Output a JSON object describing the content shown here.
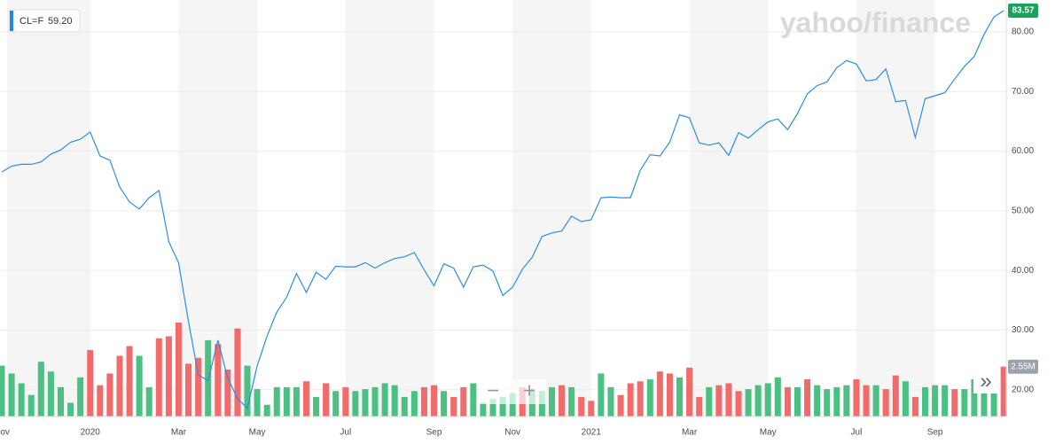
{
  "chart_data": {
    "type": "line",
    "symbol": "CL=F",
    "legend_value": "59.20",
    "logo": "yahoo/finance",
    "last_price": 83.57,
    "controls": [
      "−",
      "+",
      "»"
    ],
    "categories": [
      "Nov",
      null,
      null,
      null,
      null,
      null,
      null,
      null,
      null,
      "2020",
      null,
      null,
      null,
      null,
      null,
      null,
      null,
      null,
      "Mar",
      null,
      null,
      null,
      null,
      null,
      null,
      null,
      "May",
      null,
      null,
      null,
      null,
      null,
      null,
      null,
      null,
      "Jul",
      null,
      null,
      null,
      null,
      null,
      null,
      null,
      null,
      "Sep",
      null,
      null,
      null,
      null,
      null,
      null,
      null,
      "Nov",
      null,
      null,
      null,
      null,
      null,
      null,
      null,
      "2021",
      null,
      null,
      null,
      null,
      null,
      null,
      null,
      null,
      null,
      "Mar",
      null,
      null,
      null,
      null,
      null,
      null,
      null,
      "May",
      null,
      null,
      null,
      null,
      null,
      null,
      null,
      null,
      "Jul",
      null,
      null,
      null,
      null,
      null,
      null,
      null,
      "Sep",
      null,
      null,
      null,
      null,
      null,
      null,
      null
    ],
    "series": [
      {
        "color": "#2b8ee0",
        "values": [
          56.5,
          57.5,
          57.8,
          57.8,
          58.2,
          59.5,
          60.2,
          61.5,
          62.0,
          63.2,
          59.2,
          58.5,
          54.0,
          51.5,
          50.3,
          52.2,
          53.4,
          44.8,
          41.3,
          31.5,
          22.5,
          21.5,
          28.3,
          22.0,
          18.5,
          16.9,
          24.0,
          29.0,
          33.0,
          35.5,
          39.5,
          36.3,
          39.7,
          38.5,
          40.7,
          40.6,
          40.6,
          41.3,
          40.4,
          41.3,
          42.0,
          42.3,
          43.0,
          40.1,
          37.4,
          41.1,
          40.4,
          37.2,
          40.6,
          40.9,
          39.9,
          35.8,
          37.2,
          40.2,
          42.2,
          45.7,
          46.3,
          46.6,
          49.1,
          48.2,
          48.5,
          52.2,
          52.3,
          52.2,
          52.2,
          56.8,
          59.4,
          59.2,
          61.5,
          66.1,
          65.6,
          61.4,
          61.0,
          61.4,
          59.3,
          63.1,
          62.2,
          63.6,
          64.9,
          65.4,
          63.6,
          66.3,
          69.6,
          71.0,
          71.6,
          74.0,
          75.2,
          74.6,
          71.8,
          72.0,
          73.8,
          68.3,
          68.5,
          62.3,
          68.8,
          69.3,
          69.8,
          72.1,
          74.2,
          75.9,
          79.6,
          82.5,
          83.57
        ]
      }
    ],
    "volume": {
      "values": [
        2.6,
        2.2,
        1.7,
        1.1,
        2.8,
        2.3,
        1.5,
        0.7,
        2.0,
        3.4,
        1.6,
        2.2,
        3.1,
        3.6,
        3.1,
        1.5,
        4.0,
        4.1,
        4.8,
        2.7,
        3.0,
        3.9,
        3.7,
        2.4,
        4.5,
        2.6,
        1.4,
        0.6,
        1.5,
        1.5,
        1.5,
        1.8,
        1.0,
        1.7,
        1.3,
        1.5,
        1.3,
        1.4,
        1.5,
        1.7,
        1.6,
        1.0,
        1.3,
        1.5,
        1.6,
        1.3,
        1.0,
        1.5,
        1.7,
        0.7,
        0.9,
        1.0,
        1.2,
        1.5,
        1.4,
        1.3,
        1.5,
        1.6,
        1.5,
        1.0,
        0.8,
        2.2,
        1.5,
        1.1,
        1.7,
        1.8,
        1.9,
        2.3,
        2.2,
        2.0,
        2.5,
        1.0,
        1.5,
        1.6,
        1.7,
        1.3,
        1.4,
        1.6,
        1.7,
        2.0,
        1.5,
        1.5,
        1.9,
        1.6,
        1.4,
        1.5,
        1.6,
        1.9,
        1.6,
        1.6,
        1.4,
        2.1,
        1.8,
        1.0,
        1.5,
        1.6,
        1.6,
        1.4,
        1.4,
        1.9,
        1.4,
        1.7,
        2.55
      ],
      "value_labels": {
        "102": "2.55M"
      },
      "colors": [
        "#4cbf83",
        "#4cbf83",
        "#4cbf83",
        "#4cbf83",
        "#4cbf83",
        "#4cbf83",
        "#4cbf83",
        "#4cbf83",
        "#4cbf83",
        "#f26a6a",
        "#f26a6a",
        "#f26a6a",
        "#f26a6a",
        "#f26a6a",
        "#4cbf83",
        "#4cbf83",
        "#f26a6a",
        "#f26a6a",
        "#f26a6a",
        "#f26a6a",
        "#f26a6a",
        "#4cbf83",
        "#f26a6a",
        "#f26a6a",
        "#f26a6a",
        "#4cbf83",
        "#4cbf83",
        "#4cbf83",
        "#4cbf83",
        "#4cbf83",
        "#4cbf83",
        "#f26a6a",
        "#4cbf83",
        "#f26a6a",
        "#4cbf83",
        "#f26a6a",
        "#4cbf83",
        "#4cbf83",
        "#4cbf83",
        "#4cbf83",
        "#4cbf83",
        "#4cbf83",
        "#4cbf83",
        "#f26a6a",
        "#f26a6a",
        "#4cbf83",
        "#f26a6a",
        "#f26a6a",
        "#4cbf83",
        "#4cbf83",
        "#4cbf83",
        "#4cbf83",
        "#4cbf83",
        "#f26a6a",
        "#4cbf83",
        "#4cbf83",
        "#4cbf83",
        "#f26a6a",
        "#4cbf83",
        "#f26a6a",
        "#f26a6a",
        "#4cbf83",
        "#4cbf83",
        "#f26a6a",
        "#f26a6a",
        "#f26a6a",
        "#4cbf83",
        "#f26a6a",
        "#f26a6a",
        "#4cbf83",
        "#f26a6a",
        "#f26a6a",
        "#4cbf83",
        "#f26a6a",
        "#f26a6a",
        "#f26a6a",
        "#4cbf83",
        "#4cbf83",
        "#4cbf83",
        "#4cbf83",
        "#f26a6a",
        "#4cbf83",
        "#f26a6a",
        "#4cbf83",
        "#4cbf83",
        "#4cbf83",
        "#4cbf83",
        "#f26a6a",
        "#f26a6a",
        "#4cbf83",
        "#f26a6a",
        "#f26a6a",
        "#4cbf83",
        "#f26a6a",
        "#4cbf83",
        "#4cbf83",
        "#4cbf83",
        "#f26a6a",
        "#4cbf83",
        "#4cbf83",
        "#4cbf83",
        "#4cbf83",
        "#f26a6a"
      ]
    },
    "ylim": [
      15.5,
      85.35
    ],
    "yticks": [
      {
        "value": 20,
        "label": "20.00"
      },
      {
        "value": 30,
        "label": "30.00"
      },
      {
        "value": 40,
        "label": "40.00"
      },
      {
        "value": 50,
        "label": "50.00"
      },
      {
        "value": 60,
        "label": "60.00"
      },
      {
        "value": 70,
        "label": "70.00"
      },
      {
        "value": 80,
        "label": "80.00"
      }
    ],
    "grid": true,
    "shaded_bands": true
  }
}
